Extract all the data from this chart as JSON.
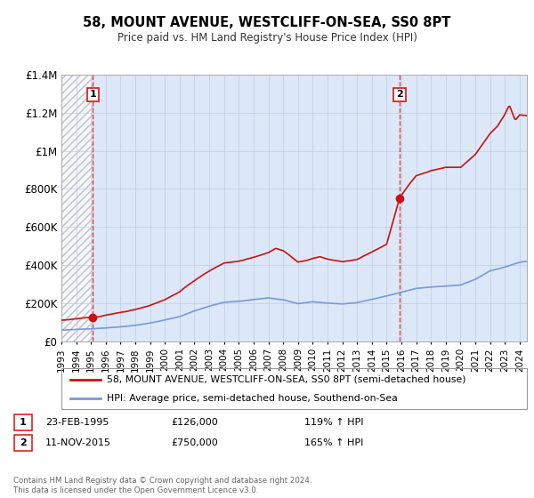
{
  "title": "58, MOUNT AVENUE, WESTCLIFF-ON-SEA, SS0 8PT",
  "subtitle": "Price paid vs. HM Land Registry's House Price Index (HPI)",
  "legend_line1": "58, MOUNT AVENUE, WESTCLIFF-ON-SEA, SS0 8PT (semi-detached house)",
  "legend_line2": "HPI: Average price, semi-detached house, Southend-on-Sea",
  "transaction1_date": "23-FEB-1995",
  "transaction1_price": "£126,000",
  "transaction1_hpi": "119% ↑ HPI",
  "transaction2_date": "11-NOV-2015",
  "transaction2_price": "£750,000",
  "transaction2_hpi": "165% ↑ HPI",
  "footnote": "Contains HM Land Registry data © Crown copyright and database right 2024.\nThis data is licensed under the Open Government Licence v3.0.",
  "transaction1_year": 1995.12,
  "transaction1_value": 126000,
  "transaction2_year": 2015.87,
  "transaction2_value": 750000,
  "hpi_color": "#7799dd",
  "price_color": "#cc1111",
  "marker_color": "#cc1111",
  "vline_color": "#dd2222",
  "ylim": [
    0,
    1400000
  ],
  "xlim_min": 1993.0,
  "xlim_max": 2024.5,
  "yticks": [
    0,
    200000,
    400000,
    600000,
    800000,
    1000000,
    1200000,
    1400000
  ],
  "ytick_labels": [
    "£0",
    "£200K",
    "£400K",
    "£600K",
    "£800K",
    "£1M",
    "£1.2M",
    "£1.4M"
  ],
  "xticks": [
    1993,
    1994,
    1995,
    1996,
    1997,
    1998,
    1999,
    2000,
    2001,
    2002,
    2003,
    2004,
    2005,
    2006,
    2007,
    2008,
    2009,
    2010,
    2011,
    2012,
    2013,
    2014,
    2015,
    2016,
    2017,
    2018,
    2019,
    2020,
    2021,
    2022,
    2023,
    2024
  ],
  "background_color": "#dce8f8",
  "grid_color": "#c0cce0"
}
